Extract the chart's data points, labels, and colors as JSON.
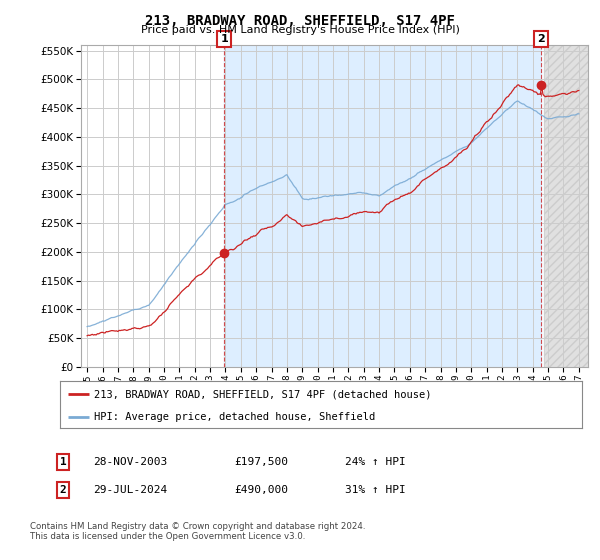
{
  "title": "213, BRADWAY ROAD, SHEFFIELD, S17 4PF",
  "subtitle": "Price paid vs. HM Land Registry's House Price Index (HPI)",
  "ylim": [
    0,
    560000
  ],
  "yticks": [
    0,
    50000,
    100000,
    150000,
    200000,
    250000,
    300000,
    350000,
    400000,
    450000,
    500000,
    550000
  ],
  "hpi_color": "#7aaad4",
  "price_color": "#cc2222",
  "background_color": "#ffffff",
  "grid_color": "#cccccc",
  "shade_color": "#ddeeff",
  "hatch_color": "#cccccc",
  "legend_label_price": "213, BRADWAY ROAD, SHEFFIELD, S17 4PF (detached house)",
  "legend_label_hpi": "HPI: Average price, detached house, Sheffield",
  "sale1_date": "28-NOV-2003",
  "sale1_price": "£197,500",
  "sale1_hpi": "24% ↑ HPI",
  "sale2_date": "29-JUL-2024",
  "sale2_price": "£490,000",
  "sale2_hpi": "31% ↑ HPI",
  "footnote": "Contains HM Land Registry data © Crown copyright and database right 2024.\nThis data is licensed under the Open Government Licence v3.0.",
  "start_year": 1995,
  "end_year": 2027,
  "sale1_year": 2003.917,
  "sale2_year": 2024.542,
  "sale1_price_val": 197500,
  "sale2_price_val": 490000
}
